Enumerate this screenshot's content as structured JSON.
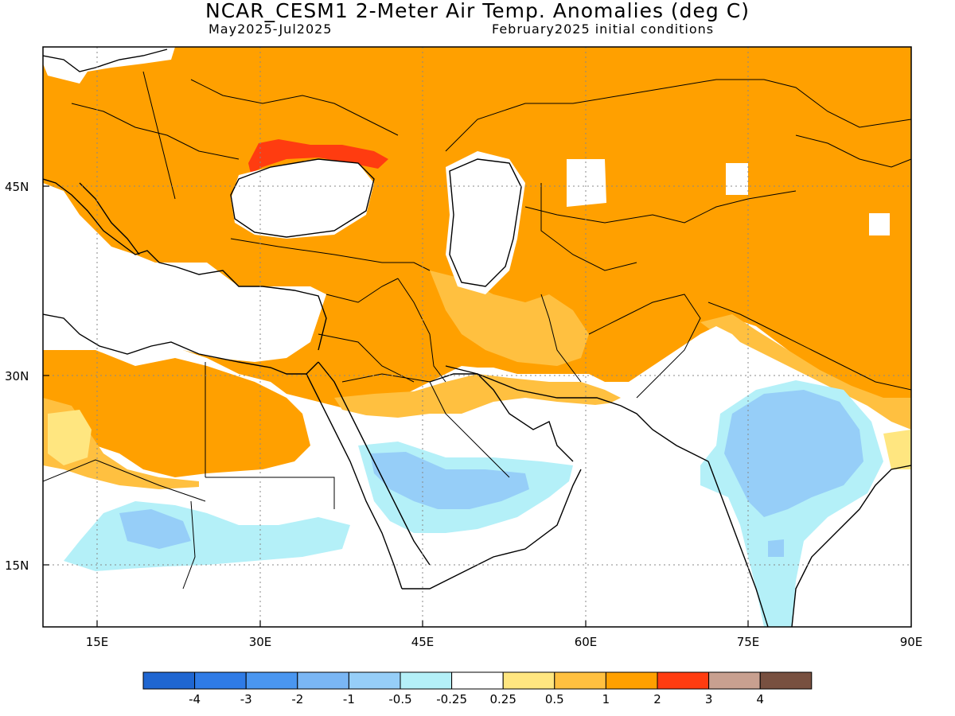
{
  "title": "NCAR_CESM1 2-Meter Air Temp. Anomalies (deg C)",
  "subtitle_left": "May2025-Jul2025",
  "subtitle_right": "February2025 initial conditions",
  "map": {
    "lon_range": [
      10,
      90
    ],
    "lat_range": [
      10,
      55
    ],
    "lon_ticks": [
      "15E",
      "30E",
      "45E",
      "60E",
      "75E",
      "90E"
    ],
    "lat_ticks": [
      "45N",
      "30N",
      "15N"
    ],
    "grid": "dotted"
  },
  "colorbar": {
    "labels": [
      "-4",
      "-3",
      "-2",
      "-1",
      "-0.5",
      "-0.25",
      "0.25",
      "0.5",
      "1",
      "2",
      "3",
      "4"
    ],
    "colors": [
      "#1f66d1",
      "#2f7be6",
      "#4a96f0",
      "#7ab6f4",
      "#96cef8",
      "#b4f0f8",
      "#ffffff",
      "#ffe680",
      "#ffc040",
      "#ffa000",
      "#ff3c10",
      "#c8a090",
      "#785040"
    ]
  },
  "colors": {
    "cat_1_2": "#ffa000",
    "cat_0_5_1": "#ffc040",
    "cat_0_25_0_5": "#ffe680",
    "cat_2_3": "#ff3c10",
    "cat_m0_5_m0_25": "#b4f0f8",
    "cat_m1_m0_5": "#96cef8",
    "cat_m2_m1": "#7ab6f4",
    "land_outline": "#000000"
  }
}
